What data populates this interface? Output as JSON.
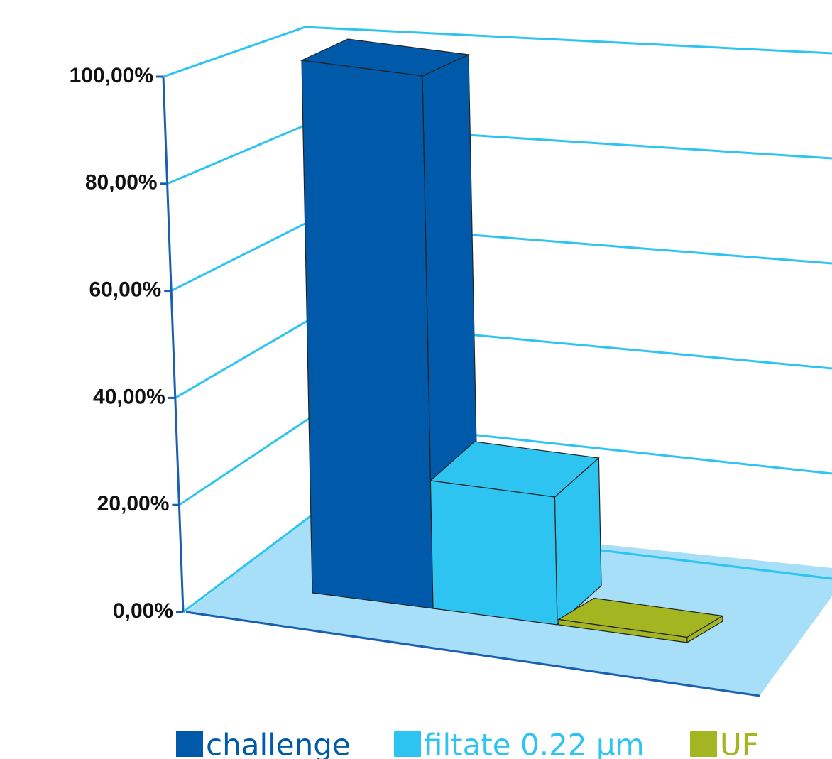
{
  "chart_data": {
    "type": "bar3d",
    "series": [
      {
        "name": "challenge",
        "color": "#005aa9",
        "values": [
          100
        ]
      },
      {
        "name": "filtate 0.22 µm",
        "color": "#2ec4f1",
        "values": [
          24
        ]
      },
      {
        "name": "UF",
        "color": "#a3b520",
        "values": [
          1
        ]
      }
    ],
    "ylim": [
      0,
      100
    ],
    "yticks": [
      {
        "value": 0,
        "label": "0,00%"
      },
      {
        "value": 20,
        "label": "20,00%"
      },
      {
        "value": 40,
        "label": "40,00%"
      },
      {
        "value": 60,
        "label": "60,00%"
      },
      {
        "value": 80,
        "label": "80,00%"
      },
      {
        "value": 100,
        "label": "100,00%"
      }
    ],
    "grid": true,
    "legend": "bottom"
  }
}
